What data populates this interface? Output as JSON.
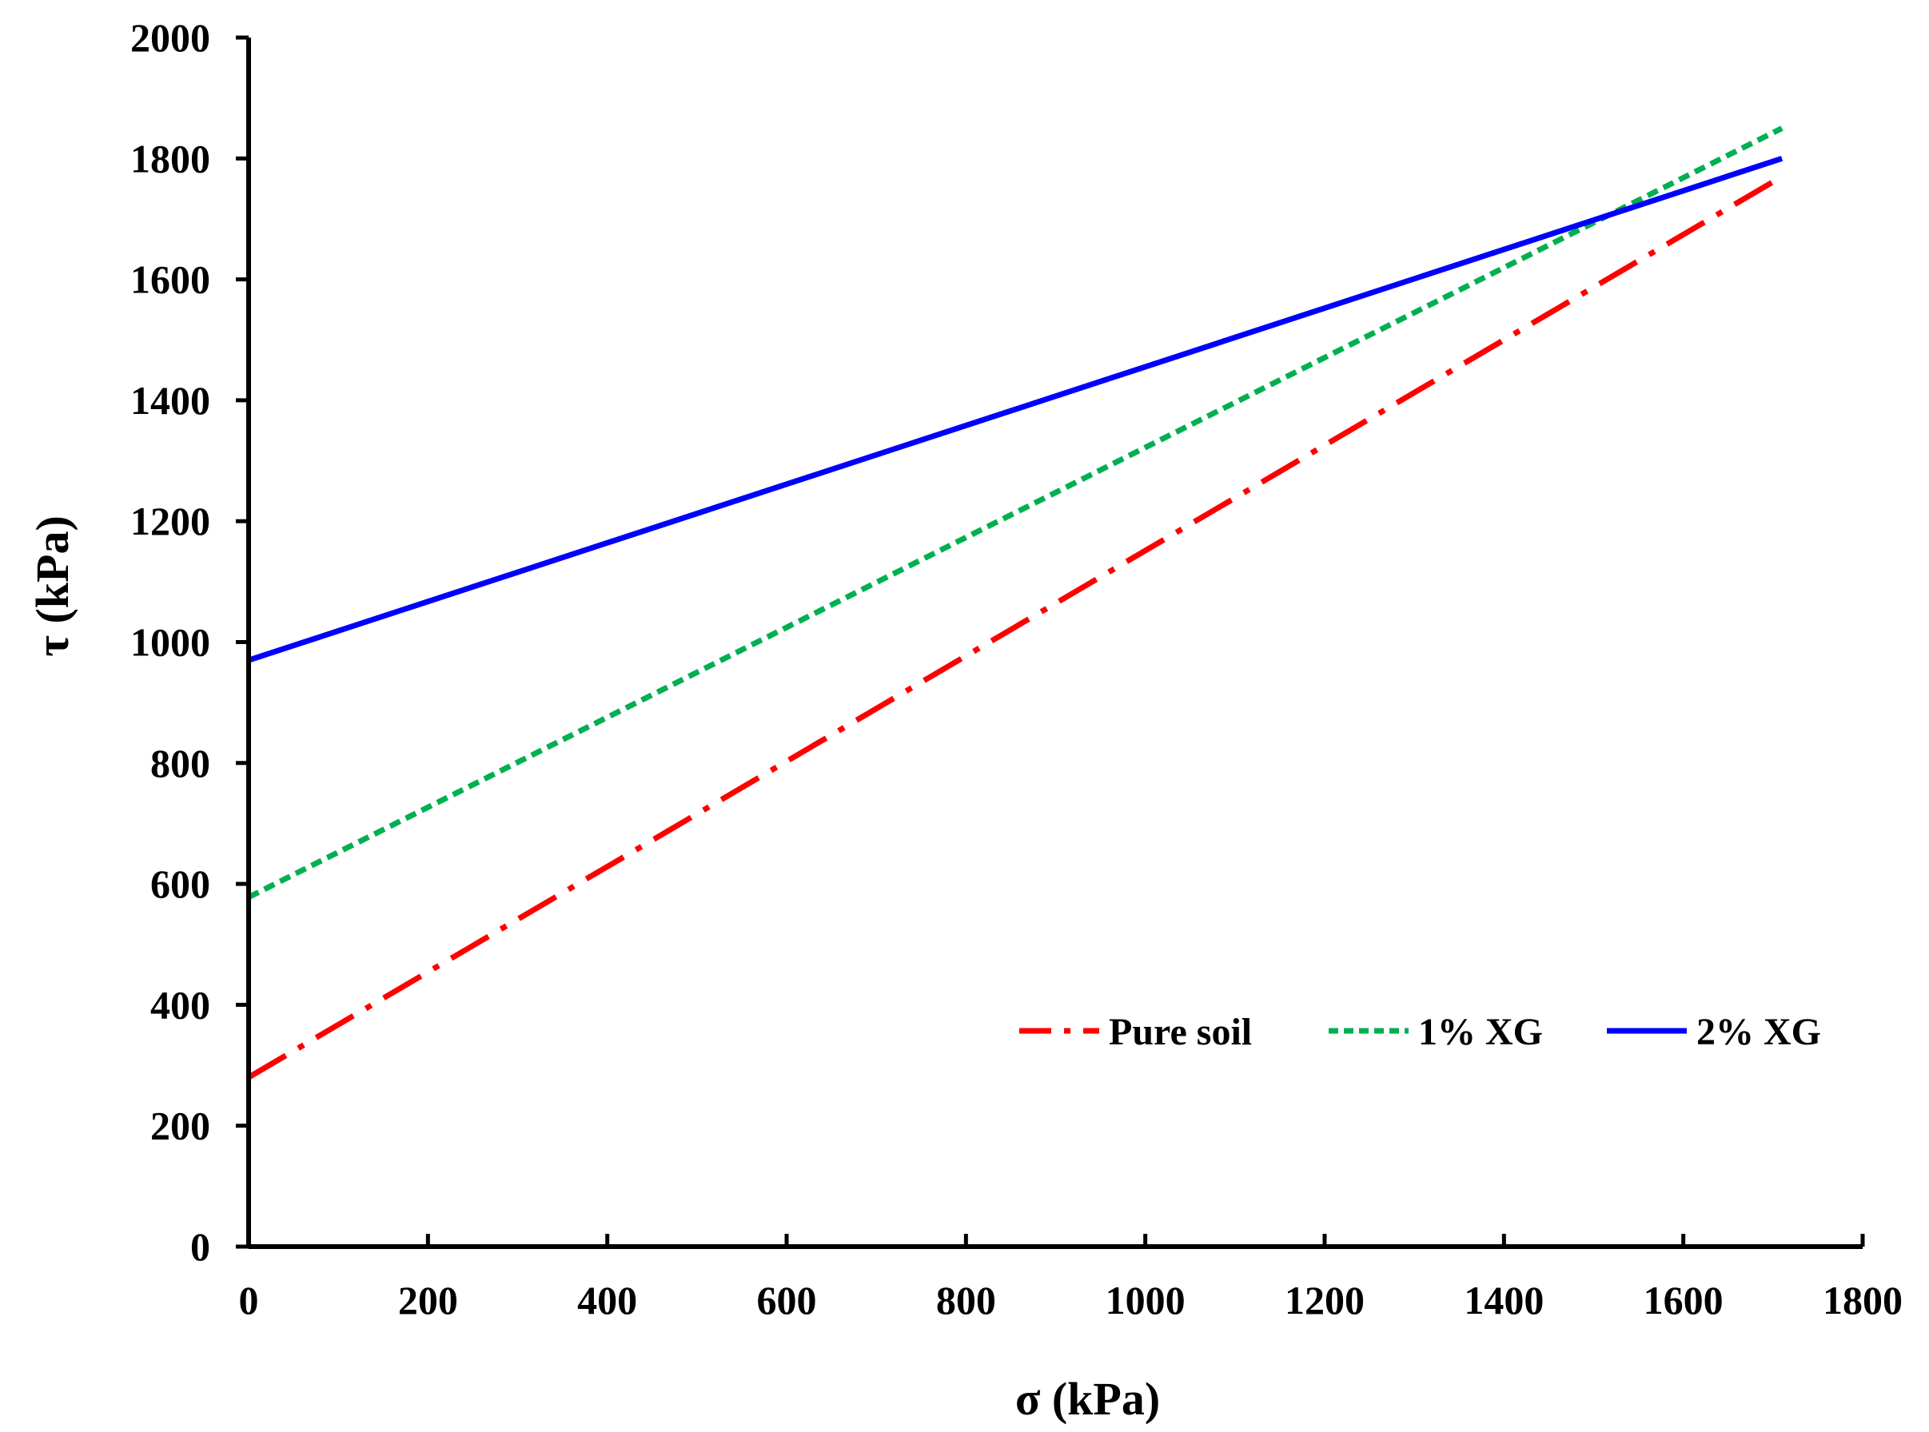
{
  "chart_data": {
    "type": "line",
    "title": "",
    "xlabel": "σ (kPa)",
    "ylabel": "τ (kPa)",
    "xlim": [
      0,
      1800
    ],
    "ylim": [
      0,
      2000
    ],
    "xticks": [
      0,
      200,
      400,
      600,
      800,
      1000,
      1200,
      1400,
      1600,
      1800
    ],
    "yticks": [
      0,
      200,
      400,
      600,
      800,
      1000,
      1200,
      1400,
      1600,
      1800,
      2000
    ],
    "xtick_labels": [
      "0",
      "200",
      "400",
      "600",
      "800",
      "1000",
      "1200",
      "1400",
      "1600",
      "1800"
    ],
    "ytick_labels": [
      "0",
      "200",
      "400",
      "600",
      "800",
      "1000",
      "1200",
      "1400",
      "1600",
      "1800",
      "2000"
    ],
    "grid": false,
    "legend_position": "bottom-right",
    "series": [
      {
        "name": "Pure soil",
        "color": "#ff0000",
        "style": "dash-dot",
        "x": [
          0,
          1710
        ],
        "y": [
          280,
          1770
        ]
      },
      {
        "name": "1% XG",
        "color": "#00b050",
        "style": "dotted",
        "x": [
          0,
          1710
        ],
        "y": [
          578,
          1850
        ]
      },
      {
        "name": "2% XG",
        "color": "#0000ff",
        "style": "solid",
        "x": [
          0,
          1710
        ],
        "y": [
          970,
          1800
        ]
      }
    ]
  }
}
